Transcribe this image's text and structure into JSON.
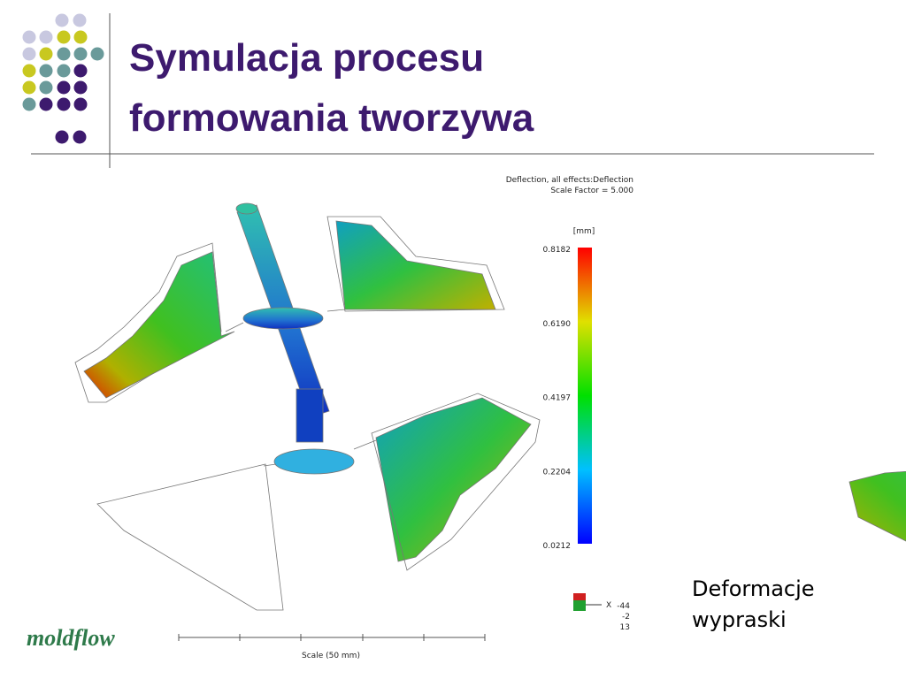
{
  "title": [
    "Symulacja procesu",
    "formowania tworzywa"
  ],
  "simulation": {
    "header": [
      "Deflection, all effects:Deflection",
      "Scale Factor = 5.000"
    ],
    "unit": "[mm]",
    "legend_labels": [
      "0.8182",
      "0.6190",
      "0.4197",
      "0.2204",
      "0.0212"
    ],
    "axis": {
      "x_label": "X",
      "values": [
        "-44",
        "-2",
        "13"
      ]
    },
    "scale_label": "Scale (50 mm)"
  },
  "caption": [
    "Deformacje",
    "wypraski"
  ],
  "logo": "moldflow"
}
